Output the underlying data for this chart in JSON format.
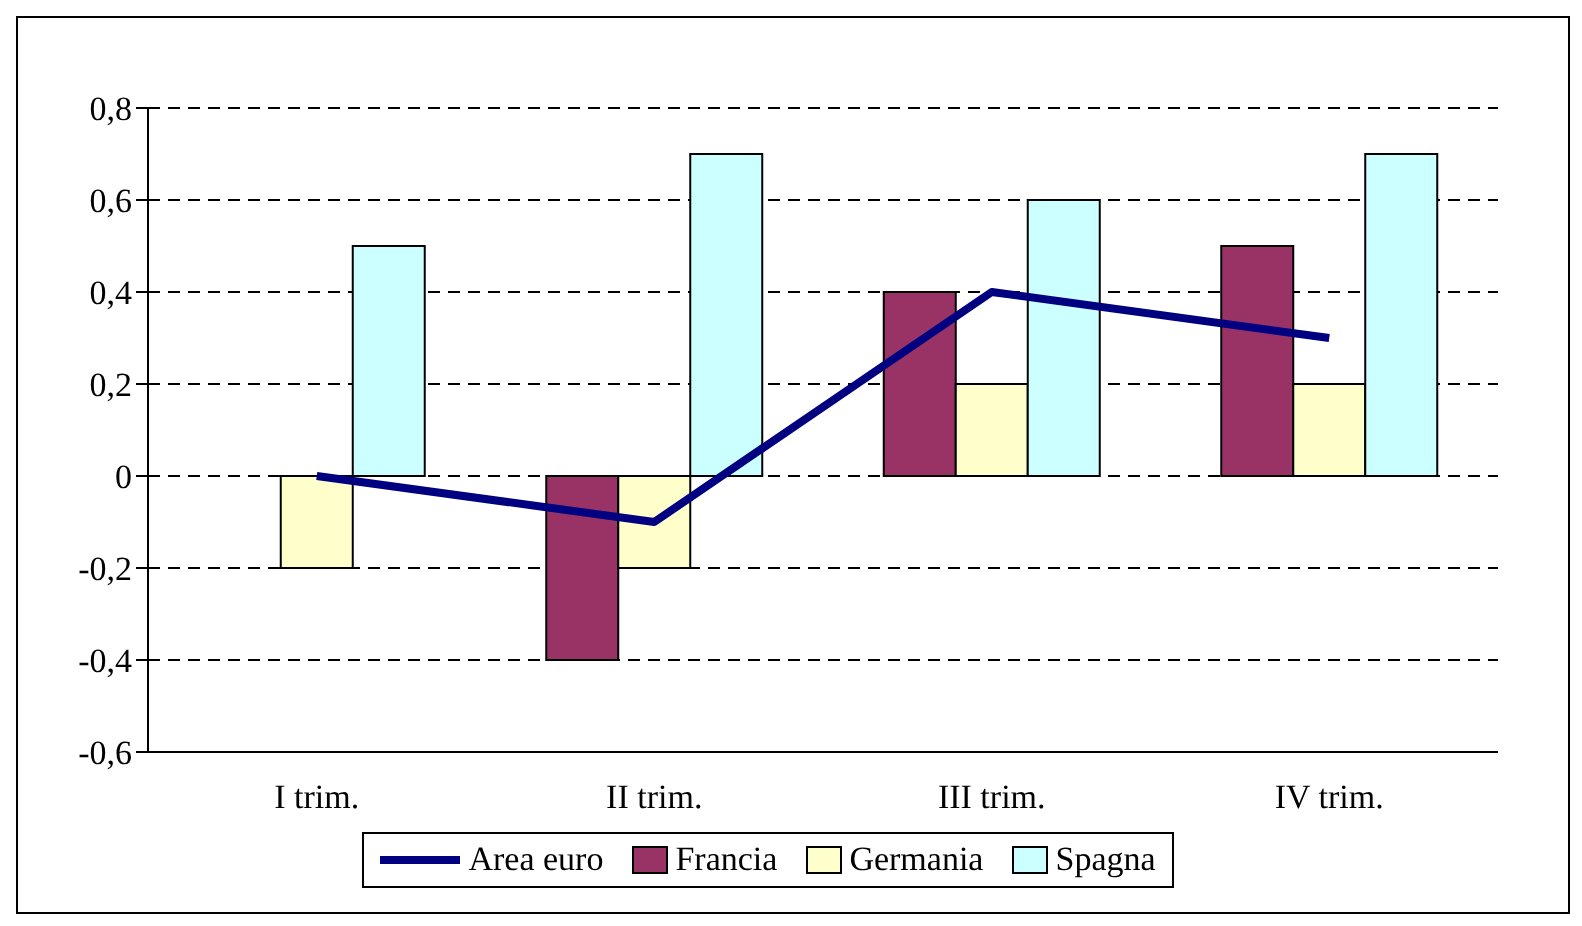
{
  "chart_data": {
    "type": "bar",
    "categories": [
      "I trim.",
      "II trim.",
      "III trim.",
      "IV trim."
    ],
    "series": [
      {
        "name": "Francia",
        "color": "#993366",
        "values": [
          0,
          -0.4,
          0.4,
          0.5
        ]
      },
      {
        "name": "Germania",
        "color": "#ffffcc",
        "values": [
          -0.2,
          -0.2,
          0.2,
          0.2
        ]
      },
      {
        "name": "Spagna",
        "color": "#ccffff",
        "values": [
          0.5,
          0.7,
          0.6,
          0.7
        ]
      },
      {
        "name": "Area euro",
        "type": "line",
        "color": "#000080",
        "values": [
          0,
          -0.1,
          0.4,
          0.3
        ]
      }
    ],
    "ylim": [
      -0.6,
      0.8
    ],
    "yticks": [
      {
        "value": -0.6,
        "label": "-0,6"
      },
      {
        "value": -0.4,
        "label": "-0,4"
      },
      {
        "value": -0.2,
        "label": "-0,2"
      },
      {
        "value": 0,
        "label": "0"
      },
      {
        "value": 0.2,
        "label": "0,2"
      },
      {
        "value": 0.4,
        "label": "0,4"
      },
      {
        "value": 0.6,
        "label": "0,6"
      },
      {
        "value": 0.8,
        "label": "0,8"
      }
    ],
    "grid": "y",
    "legend": "bottom",
    "marker": "none"
  }
}
